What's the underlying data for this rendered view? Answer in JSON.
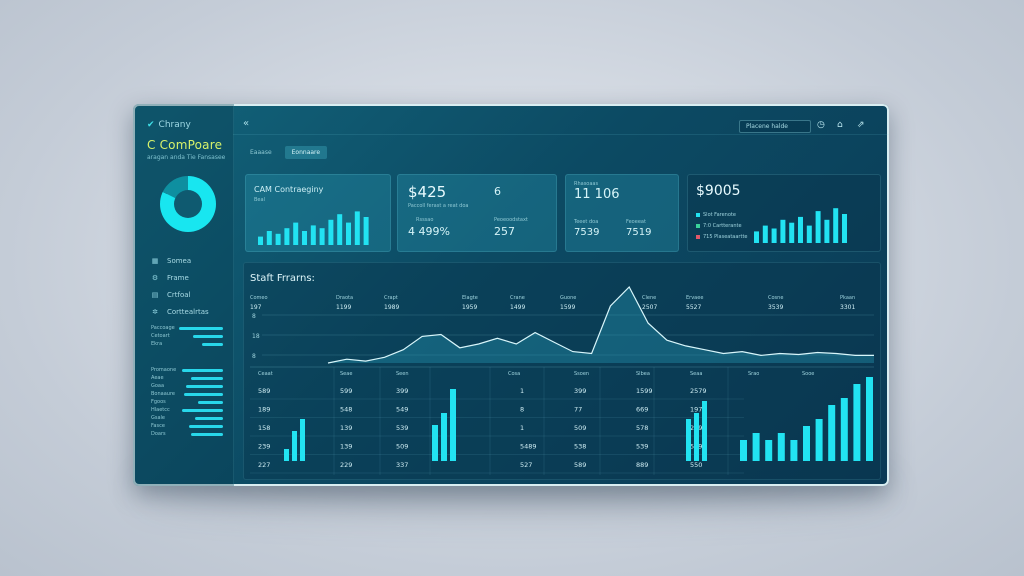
{
  "sidebar": {
    "brand": "Chrany",
    "title": "C ComPoare",
    "subtitle": "aragan anda Tie Fansasee",
    "nav": [
      {
        "label": "Somea",
        "icon": "grid-icon"
      },
      {
        "label": "Frame",
        "icon": "settings-icon"
      },
      {
        "label": "Crtfoal",
        "icon": "document-icon"
      },
      {
        "label": "Corttealrtas",
        "icon": "gear-icon"
      }
    ],
    "metrics_a": [
      {
        "label": "Paccoage",
        "level": 0.95
      },
      {
        "label": "Cetoart",
        "level": 0.65
      },
      {
        "label": "Ekra",
        "level": 0.45
      }
    ],
    "metrics_b": [
      {
        "label": "Promaone",
        "level": 0.9
      },
      {
        "label": "Aeae",
        "level": 0.7
      },
      {
        "label": "Goaa",
        "level": 0.8
      },
      {
        "label": "Bonaaure",
        "level": 0.85
      },
      {
        "label": "Fgoos",
        "level": 0.55
      },
      {
        "label": "Hlaetcc",
        "level": 0.9
      },
      {
        "label": "Gsale",
        "level": 0.6
      },
      {
        "label": "Fasce",
        "level": 0.75
      },
      {
        "label": "Doars",
        "level": 0.7
      }
    ]
  },
  "topbar": {
    "back": "«",
    "search_placeholder": "Placene halde"
  },
  "tabs": [
    {
      "label": "Eaaase",
      "active": false
    },
    {
      "label": "Eonnaare",
      "active": true
    }
  ],
  "cards": {
    "c1": {
      "title": "CAM Contraeginy",
      "sub": "Beal",
      "bars": [
        3,
        5,
        4,
        6,
        8,
        5,
        7,
        6,
        9,
        11,
        8,
        12,
        10
      ]
    },
    "c2": {
      "v1": "$425",
      "v2": "6",
      "note": "Paccoll ferast a reat doa",
      "cap1": "Rsssao",
      "cap2": "Peoeoodstaxt",
      "v3": "4 499%",
      "v4": "257"
    },
    "c3": {
      "head": "Rhasoaas",
      "v1": "11 106",
      "cap1": "Teeet doa",
      "cap2": "Feoeeat",
      "v2": "7539",
      "v3": "7519"
    },
    "c4": {
      "v1": "$9005",
      "legend": [
        {
          "label": "Slot Farenote",
          "color": "#22e3f2"
        },
        {
          "label": "7:0 Cartterante",
          "color": "#3ad29a"
        },
        {
          "label": "715 Plaseataartte",
          "color": "#e0586a"
        }
      ],
      "bars": [
        4,
        6,
        5,
        8,
        7,
        9,
        6,
        11,
        8,
        12,
        10
      ]
    }
  },
  "panel": {
    "title": "Staft Frrarns:",
    "heads": [
      "Comeo",
      "Draota",
      "Crapt",
      "Elagte",
      "Crane",
      "Guone",
      "Clene",
      "Ervaee",
      "Cosne",
      "Pkaan"
    ],
    "vals": [
      "197",
      "1199",
      "1989",
      "1959",
      "1499",
      "1599",
      "2507",
      "5527",
      "3539",
      "3301"
    ],
    "yticks": [
      "8",
      "18",
      "8"
    ],
    "curve": [
      0,
      4,
      2,
      6,
      14,
      28,
      30,
      16,
      20,
      26,
      20,
      32,
      22,
      12,
      10,
      60,
      80,
      42,
      24,
      18,
      14,
      10,
      12,
      8,
      10,
      9,
      11,
      10,
      8,
      8
    ]
  },
  "table": {
    "heads": [
      "Ceaat",
      "Seae",
      "Seen",
      "Cosa",
      "Ssoen",
      "Slbea",
      "Seaa",
      "Srao",
      "Sooe"
    ],
    "rows": [
      [
        "589",
        "599",
        "399",
        "1",
        "399",
        "1599",
        "2579"
      ],
      [
        "189",
        "548",
        "549",
        "8",
        "77",
        "669",
        "1977"
      ],
      [
        "158",
        "139",
        "539",
        "1",
        "509",
        "578",
        "259"
      ],
      [
        "239",
        "139",
        "509",
        "5489",
        "538",
        "539",
        "539"
      ],
      [
        "227",
        "229",
        "337",
        "527",
        "589",
        "889",
        "550"
      ]
    ],
    "bars_a": [
      2,
      5,
      7
    ],
    "bars_b": [
      6,
      8,
      12
    ],
    "bars_c": [
      7,
      8,
      10
    ],
    "bars_d": [
      3,
      4,
      3,
      4,
      3,
      5,
      6,
      8,
      9,
      11,
      12
    ]
  }
}
